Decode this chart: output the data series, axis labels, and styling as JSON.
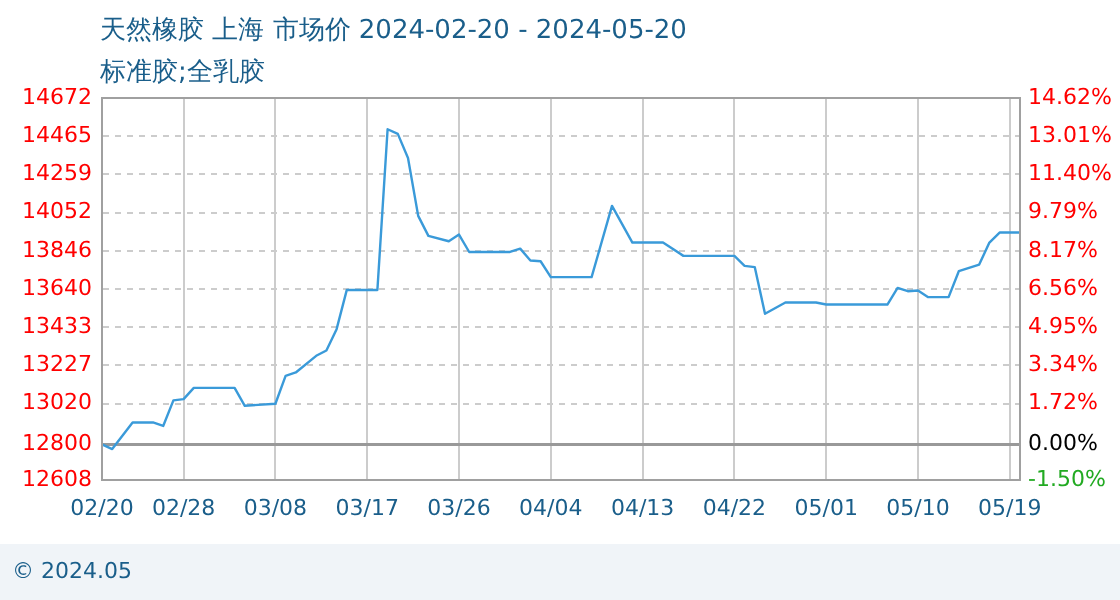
{
  "chart_data": {
    "type": "line",
    "title": "天然橡胶 上海 市场价 2024-02-20 - 2024-05-20",
    "subtitle": "标准胶;全乳胶",
    "annotations": [
      "© 2024.05"
    ],
    "x": [
      "--02-20",
      "--02-21",
      "--02-23",
      "--02-25",
      "--02-26",
      "--02-27",
      "--02-28",
      "--02-29",
      "--03-04",
      "--03-05",
      "--03-08",
      "--03-09",
      "--03-10",
      "--03-12",
      "--03-13",
      "--03-14",
      "--03-15",
      "--03-18",
      "--03-19",
      "--03-20",
      "--03-21",
      "--03-22",
      "--03-23",
      "--03-25",
      "--03-26",
      "--03-27",
      "--03-31",
      "--04-01",
      "--04-02",
      "--04-03",
      "--04-04",
      "--04-08",
      "--04-10",
      "--04-12",
      "--04-15",
      "--04-17",
      "--04-22",
      "--04-23",
      "--04-24",
      "--04-25",
      "--04-27",
      "--04-30",
      "--05-01",
      "--05-07",
      "--05-08",
      "--05-09",
      "--05-10",
      "--05-11",
      "--05-13",
      "--05-14",
      "--05-16",
      "--05-17",
      "--05-18",
      "--05-20"
    ],
    "series": [
      {
        "color": "#3a9ad9",
        "values": [
          12800,
          12775,
          12919,
          12919,
          12900,
          13038,
          13045,
          13106,
          13106,
          13009,
          13020,
          13171,
          13189,
          13279,
          13308,
          13423,
          13635,
          13635,
          14503,
          14478,
          14348,
          14035,
          13927,
          13898,
          13934,
          13840,
          13840,
          13858,
          13794,
          13790,
          13704,
          13704,
          14089,
          13891,
          13891,
          13819,
          13819,
          13765,
          13758,
          13506,
          13567,
          13567,
          13556,
          13556,
          13646,
          13628,
          13632,
          13596,
          13596,
          13736,
          13772,
          13891,
          13945,
          13945
        ]
      }
    ],
    "xlim": [
      "--02-20",
      "--05-20"
    ],
    "xticks": [
      {
        "value": "--02-20",
        "label": "02/20"
      },
      {
        "value": "--02-28",
        "label": "02/28"
      },
      {
        "value": "--03-08",
        "label": "03/08"
      },
      {
        "value": "--03-17",
        "label": "03/17"
      },
      {
        "value": "--03-26",
        "label": "03/26"
      },
      {
        "value": "--04-04",
        "label": "04/04"
      },
      {
        "value": "--04-13",
        "label": "04/13"
      },
      {
        "value": "--04-22",
        "label": "04/22"
      },
      {
        "value": "--05-01",
        "label": "05/01"
      },
      {
        "value": "--05-10",
        "label": "05/10"
      },
      {
        "value": "--05-19",
        "label": "05/19"
      }
    ],
    "ylim": [
      12608,
      14672
    ],
    "yticks": [
      12608,
      12800,
      13020,
      13227,
      13433,
      13640,
      13846,
      14052,
      14259,
      14465,
      14672
    ],
    "y2lim": [
      -1.5,
      14.62
    ],
    "y2ticks": [
      {
        "value": -1.5,
        "label": "-1.50%"
      },
      {
        "value": 0,
        "label": "0.00%"
      },
      {
        "value": 1.72,
        "label": "1.72%"
      },
      {
        "value": 3.34,
        "label": "3.34%"
      },
      {
        "value": 4.95,
        "label": "4.95%"
      },
      {
        "value": 6.56,
        "label": "6.56%"
      },
      {
        "value": 8.17,
        "label": "8.17%"
      },
      {
        "value": 9.79,
        "label": "9.79%"
      },
      {
        "value": 11.4,
        "label": "11.40%"
      },
      {
        "value": 13.01,
        "label": "13.01%"
      },
      {
        "value": 14.62,
        "label": "14.62%"
      }
    ],
    "ref_lines": [
      {
        "axis": "y",
        "value": 12800,
        "color": "#999999"
      }
    ],
    "grid": true,
    "legend": false,
    "marker": "none",
    "line_style": "solid"
  }
}
